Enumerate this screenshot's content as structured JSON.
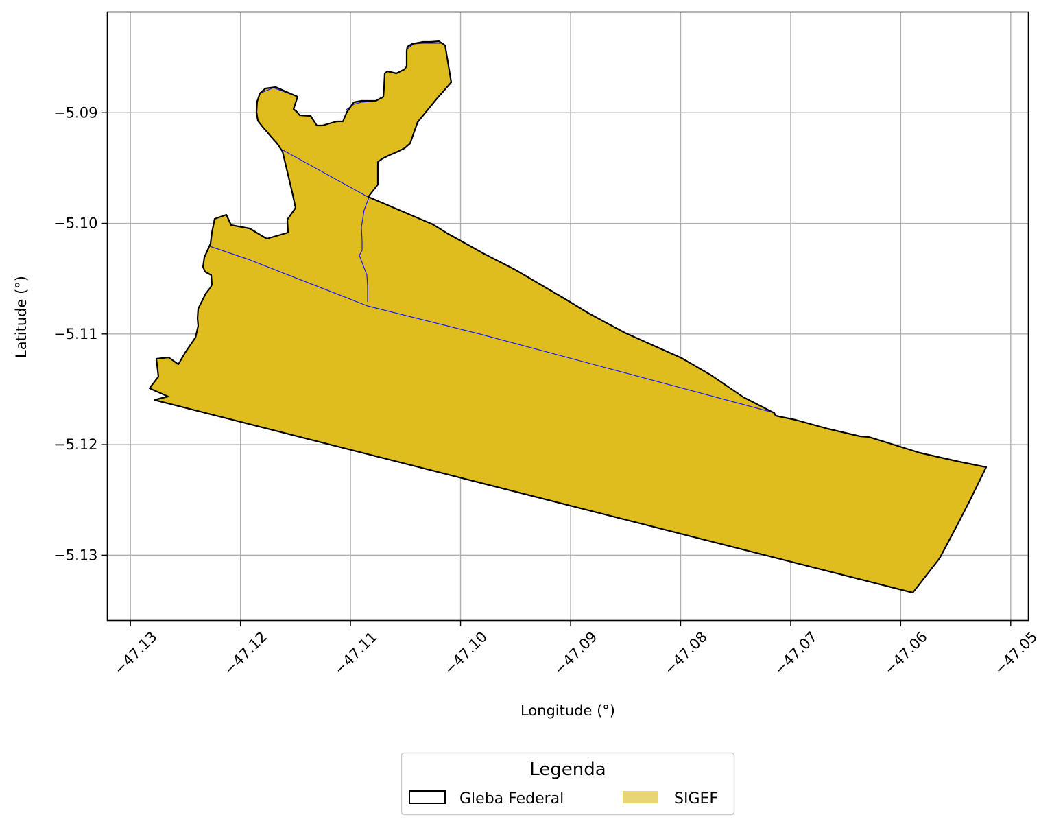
{
  "map": {
    "xlabel": "Longitude (°)",
    "ylabel": "Latitude (°)",
    "grid": true,
    "xlim": [
      -47.1321,
      -47.0484
    ],
    "ylim": [
      -5.1359,
      -5.0809
    ],
    "x_ticks": [
      -47.13,
      -47.12,
      -47.11,
      -47.1,
      -47.09,
      -47.08,
      -47.07,
      -47.06,
      -47.05
    ],
    "x_tick_labels": [
      "−47.13",
      "−47.12",
      "−47.11",
      "−47.10",
      "−47.09",
      "−47.08",
      "−47.07",
      "−47.06",
      "−47.05"
    ],
    "y_ticks": [
      -5.09,
      -5.1,
      -5.11,
      -5.12,
      -5.13
    ],
    "y_tick_labels": [
      "−5.09",
      "−5.10",
      "−5.11",
      "−5.12",
      "−5.13"
    ],
    "colors": {
      "sigef_fill": "#dfbd1f",
      "gleba_edge": "#000000",
      "internal_boundaries": "#1a1aff",
      "grid": "#b0b0b0",
      "legend_sigef_swatch": "#e8d577"
    },
    "legend": {
      "title": "Legenda",
      "placement": "bottom-center",
      "items": [
        {
          "label": "Gleba Federal",
          "style": "outline"
        },
        {
          "label": "SIGEF",
          "style": "fill"
        }
      ]
    }
  },
  "chart_data": {
    "type": "map",
    "gleba_federal": [
      [
        -47.1227,
        -5.116
      ],
      [
        -47.1237,
        -5.1156
      ],
      [
        -47.125,
        -5.1148
      ],
      [
        -47.1242,
        -5.1139
      ],
      [
        -47.1246,
        -5.113
      ],
      [
        -47.1238,
        -5.1128
      ],
      [
        -47.1233,
        -5.1123
      ],
      [
        -47.1228,
        -5.1114
      ],
      [
        -47.1225,
        -5.1102
      ],
      [
        -47.1222,
        -5.1094
      ],
      [
        -47.1214,
        -5.1082
      ],
      [
        -47.1213,
        -5.1074
      ],
      [
        -47.1212,
        -5.1061
      ],
      [
        -47.1209,
        -5.1055
      ],
      [
        -47.1209,
        -5.1046
      ],
      [
        -47.1207,
        -5.1036
      ],
      [
        -47.1206,
        -5.102
      ],
      [
        -47.1203,
        -5.101
      ],
      [
        -47.1193,
        -5.1007
      ],
      [
        -47.1185,
        -5.1005
      ],
      [
        -47.1178,
        -5.1004
      ],
      [
        -47.1167,
        -5.1013
      ],
      [
        -47.1152,
        -5.101
      ],
      [
        -47.1152,
        -5.1003
      ],
      [
        -47.115,
        -5.0995
      ],
      [
        -47.1148,
        -5.0987
      ],
      [
        -47.1145,
        -5.0972
      ],
      [
        -47.1141,
        -5.0945
      ],
      [
        -47.1134,
        -5.0932
      ],
      [
        -47.1128,
        -5.0928
      ],
      [
        -47.1124,
        -5.0922
      ],
      [
        -47.1123,
        -5.0912
      ],
      [
        -47.112,
        -5.0905
      ],
      [
        -47.1123,
        -5.0898
      ],
      [
        -47.1125,
        -5.0891
      ],
      [
        -47.1126,
        -5.0885
      ],
      [
        -47.1124,
        -5.0876
      ],
      [
        -47.1121,
        -5.0874
      ],
      [
        -47.1114,
        -5.0872
      ],
      [
        -47.1106,
        -5.0873
      ],
      [
        -47.1092,
        -5.0876
      ],
      [
        -47.1087,
        -5.0885
      ],
      [
        -47.1081,
        -5.0889
      ],
      [
        -47.1074,
        -5.0893
      ],
      [
        -47.1062,
        -5.0896
      ],
      [
        -47.1049,
        -5.0902
      ],
      [
        -47.104,
        -5.0906
      ],
      [
        -47.1021,
        -5.0913
      ],
      [
        -47.1007,
        -5.0914
      ],
      [
        -47.0993,
        -5.0913
      ],
      [
        -47.0979,
        -5.0911
      ],
      [
        -47.097,
        -5.0908
      ],
      [
        -47.0958,
        -5.0903
      ],
      [
        -47.0944,
        -5.0892
      ],
      [
        -47.0928,
        -5.0884
      ],
      [
        -47.0916,
        -5.0885
      ],
      [
        -47.0907,
        -5.0891
      ],
      [
        -47.0899,
        -5.0896
      ],
      [
        -47.0887,
        -5.0905
      ],
      [
        -47.0877,
        -5.0913
      ],
      [
        -47.0869,
        -5.0921
      ],
      [
        -47.0858,
        -5.093
      ],
      [
        -47.0842,
        -5.0939
      ],
      [
        -47.0831,
        -5.0949
      ],
      [
        -47.0826,
        -5.0959
      ],
      [
        -47.0822,
        -5.0969
      ],
      [
        -47.0815,
        -5.0984
      ],
      [
        -47.0804,
        -5.0989
      ],
      [
        -47.0791,
        -5.0994
      ],
      [
        -47.078,
        -5.0997
      ],
      [
        -47.0769,
        -5.0998
      ],
      [
        -47.076,
        -5.1004
      ],
      [
        -47.0752,
        -5.1014
      ],
      [
        -47.0744,
        -5.1024
      ],
      [
        -47.0736,
        -5.1038
      ],
      [
        -47.0728,
        -5.1052
      ],
      [
        -47.072,
        -5.1066
      ],
      [
        -47.0712,
        -5.108
      ],
      [
        -47.0704,
        -5.1094
      ],
      [
        -47.0696,
        -5.1108
      ],
      [
        -47.0688,
        -5.112
      ],
      [
        -47.0678,
        -5.1133
      ],
      [
        -47.0664,
        -5.115
      ],
      [
        -47.0655,
        -5.116
      ],
      [
        -47.0647,
        -5.1171
      ],
      [
        -47.0639,
        -5.1183
      ],
      [
        -47.0629,
        -5.1193
      ],
      [
        -47.062,
        -5.12
      ],
      [
        -47.06,
        -5.1211
      ],
      [
        -47.0572,
        -5.1219
      ],
      [
        -47.0549,
        -5.1226
      ],
      [
        -47.0524,
        -5.1232
      ],
      [
        -47.0519,
        -5.1239
      ],
      [
        -47.0543,
        -5.1258
      ],
      [
        -47.0563,
        -5.1303
      ],
      [
        -47.0589,
        -5.1336
      ]
    ],
    "sigef_parcels": 3,
    "internal_boundaries": 3
  }
}
